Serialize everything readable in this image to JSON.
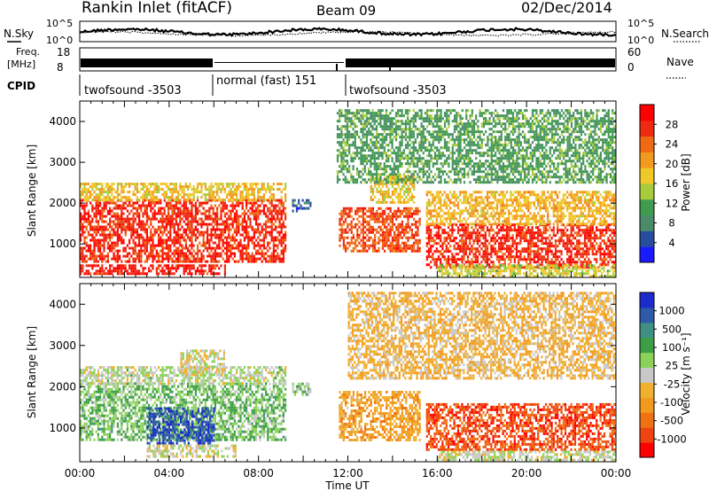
{
  "header": {
    "title": "Rankin Inlet (fitACF)",
    "beam": "Beam 09",
    "date": "02/Dec/2014"
  },
  "noise_panel": {
    "left_label": "N.Sky",
    "right_label": "N.Search",
    "ticks": [
      "10^5",
      "10^0"
    ]
  },
  "freq_panel": {
    "left_label_line1": "Freq.",
    "left_label_line2": "[MHz]",
    "left_ticks": [
      "18",
      "8"
    ],
    "right_label": "Nave",
    "right_ticks": [
      "60",
      "0"
    ]
  },
  "cpid": {
    "label": "CPID",
    "segments": [
      {
        "name": "twofsound -3503",
        "start_hour": 0,
        "end_hour": 6
      },
      {
        "name": "normal (fast) 151",
        "start_hour": 6,
        "end_hour": 12
      },
      {
        "name": "twofsound -3503",
        "start_hour": 12,
        "end_hour": 24
      }
    ]
  },
  "colors": {
    "power": [
      "#1a1aff",
      "#274e9e",
      "#4a8c6a",
      "#3f9b4f",
      "#a8cc3c",
      "#f0c828",
      "#f29a1e",
      "#f06a14",
      "#ee2a10",
      "#ff0000"
    ],
    "velocity": [
      "#1c2bcc",
      "#2e5aa8",
      "#3f8f82",
      "#3d9e46",
      "#8cd25a",
      "#c8c8c8",
      "#f0b030",
      "#f29a1e",
      "#f07014",
      "#ee4410",
      "#ff0000"
    ]
  },
  "chart_data": [
    {
      "type": "heatmap",
      "name": "Power",
      "ylabel": "Slant Range [km]",
      "xlabel": "Time UT",
      "xlim": [
        0,
        24
      ],
      "ylim": [
        180,
        4500
      ],
      "x_ticks": [
        "00:00",
        "04:00",
        "08:00",
        "12:00",
        "16:00",
        "20:00",
        "00:00"
      ],
      "y_ticks": [
        1000,
        2000,
        3000,
        4000
      ],
      "colorbar": {
        "label": "Power [dB]",
        "ticks": [
          "4",
          "8",
          "12",
          "16",
          "20",
          "24",
          "28"
        ],
        "min": 0,
        "max": 30
      },
      "echo_regions": [
        {
          "t0": 0.0,
          "t1": 9.2,
          "r0": 600,
          "r1": 2100,
          "value": 26
        },
        {
          "t0": 0.0,
          "t1": 9.2,
          "r0": 2100,
          "r1": 2500,
          "value": 17
        },
        {
          "t0": 0.0,
          "t1": 6.5,
          "r0": 250,
          "r1": 500,
          "value": 27
        },
        {
          "t0": 9.5,
          "t1": 10.3,
          "r0": 1800,
          "r1": 2100,
          "value": 6
        },
        {
          "t0": 11.6,
          "t1": 15.2,
          "r0": 800,
          "r1": 1900,
          "value": 24
        },
        {
          "t0": 13.0,
          "t1": 15.0,
          "r0": 2000,
          "r1": 2700,
          "value": 17
        },
        {
          "t0": 15.5,
          "t1": 24.0,
          "r0": 450,
          "r1": 1500,
          "value": 26
        },
        {
          "t0": 15.5,
          "t1": 24.0,
          "r0": 1500,
          "r1": 2300,
          "value": 18
        },
        {
          "t0": 16.0,
          "t1": 24.0,
          "r0": 200,
          "r1": 500,
          "value": 15
        },
        {
          "t0": 11.5,
          "t1": 24.0,
          "r0": 2500,
          "r1": 4300,
          "value": 10
        }
      ]
    },
    {
      "type": "heatmap",
      "name": "Velocity",
      "ylabel": "Slant Range [km]",
      "xlabel": "Time UT",
      "xlim": [
        0,
        24
      ],
      "ylim": [
        180,
        4500
      ],
      "x_ticks": [
        "00:00",
        "04:00",
        "08:00",
        "12:00",
        "16:00",
        "20:00",
        "00:00"
      ],
      "y_ticks": [
        1000,
        2000,
        3000,
        4000
      ],
      "colorbar": {
        "label": "Velocity [m s⁻¹]",
        "ticks": [
          "1000",
          "500",
          "100",
          "25",
          "-25",
          "-100",
          "-500",
          "-1000"
        ],
        "min": -1000,
        "max": 1000
      },
      "echo_regions": [
        {
          "t0": 0.0,
          "t1": 9.2,
          "r0": 700,
          "r1": 2100,
          "value": 250
        },
        {
          "t0": 3.0,
          "t1": 6.0,
          "r0": 600,
          "r1": 1500,
          "value": 800
        },
        {
          "t0": 0.0,
          "t1": 9.2,
          "r0": 2100,
          "r1": 2500,
          "value": 60
        },
        {
          "t0": 4.5,
          "t1": 6.5,
          "r0": 2300,
          "r1": 2900,
          "value": 0
        },
        {
          "t0": 3.0,
          "t1": 7.0,
          "r0": 300,
          "r1": 600,
          "value": 0
        },
        {
          "t0": 9.5,
          "t1": 10.3,
          "r0": 1800,
          "r1": 2100,
          "value": 200
        },
        {
          "t0": 11.6,
          "t1": 15.2,
          "r0": 700,
          "r1": 1900,
          "value": -300
        },
        {
          "t0": 15.5,
          "t1": 24.0,
          "r0": 450,
          "r1": 1600,
          "value": -700
        },
        {
          "t0": 16.0,
          "t1": 24.0,
          "r0": 200,
          "r1": 450,
          "value": 50
        },
        {
          "t0": 12.0,
          "t1": 24.0,
          "r0": 2200,
          "r1": 4300,
          "value": -200
        }
      ]
    }
  ]
}
